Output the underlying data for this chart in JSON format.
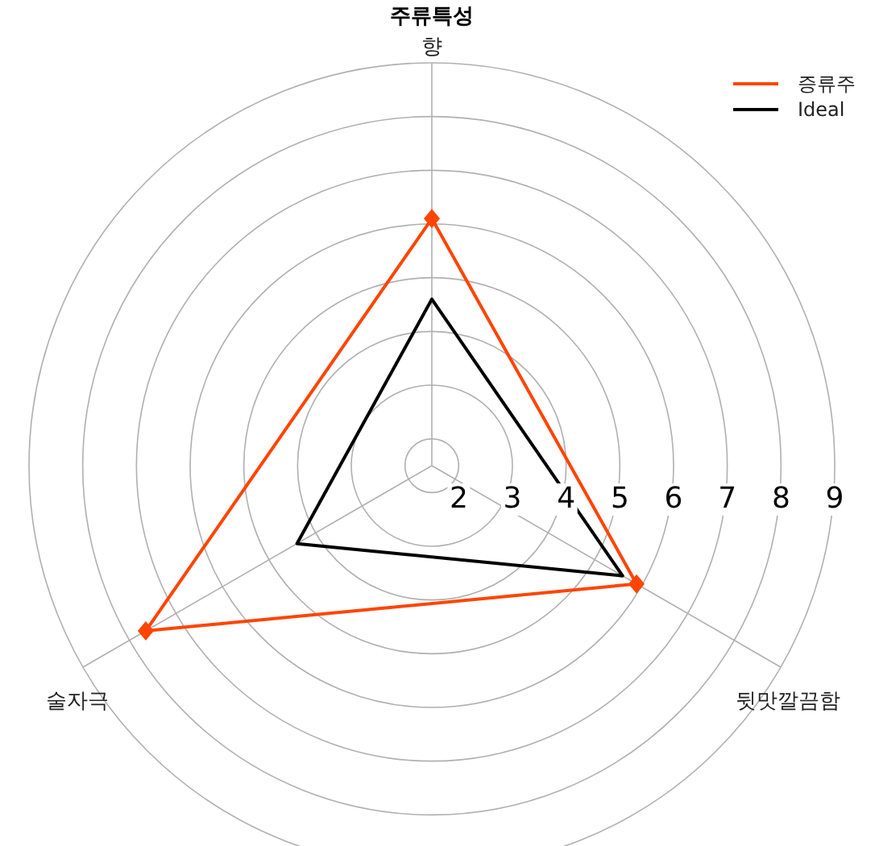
{
  "chart_data": {
    "type": "radar",
    "title": "주류특성",
    "categories": [
      "향",
      "뒷맛깔끔함",
      "술자극"
    ],
    "series": [
      {
        "name": "증류주",
        "color": "#ff4500",
        "values": [
          6.1,
          5.9,
          7.65
        ],
        "marker": "diamond"
      },
      {
        "name": "Ideal",
        "color": "#000000",
        "values": [
          4.6,
          5.6,
          4.4
        ],
        "marker": "none"
      }
    ],
    "ylim": [
      1.5,
      9
    ],
    "yticks": [
      2,
      3,
      4,
      5,
      6,
      7,
      8,
      9
    ],
    "grid": true,
    "legend": "top right"
  }
}
